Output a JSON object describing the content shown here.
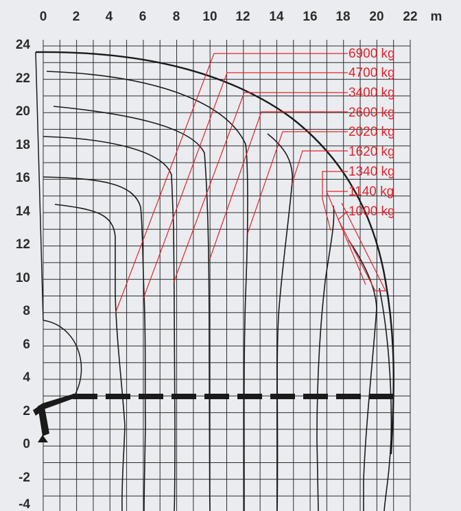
{
  "axes": {
    "x_ticks": [
      "0",
      "2",
      "4",
      "6",
      "8",
      "10",
      "12",
      "14",
      "16",
      "18",
      "20",
      "22"
    ],
    "x_unit": "m",
    "y_ticks": [
      "24",
      "22",
      "20",
      "18",
      "16",
      "14",
      "12",
      "10",
      "8",
      "6",
      "4",
      "2",
      "0",
      "-2",
      "-4"
    ]
  },
  "x_range": [
    0,
    22
  ],
  "y_range": [
    -4,
    24
  ],
  "load_labels": [
    "6900 kg",
    "4700 kg",
    "3400 kg",
    "2600 kg",
    "2020 kg",
    "1620 kg",
    "1340 kg",
    "1140 kg",
    "1000 kg"
  ],
  "colors": {
    "background": "#ebecef",
    "grid": "#2b2b2b",
    "curves": "#1a1a1a",
    "labels": "#e3222b"
  }
}
